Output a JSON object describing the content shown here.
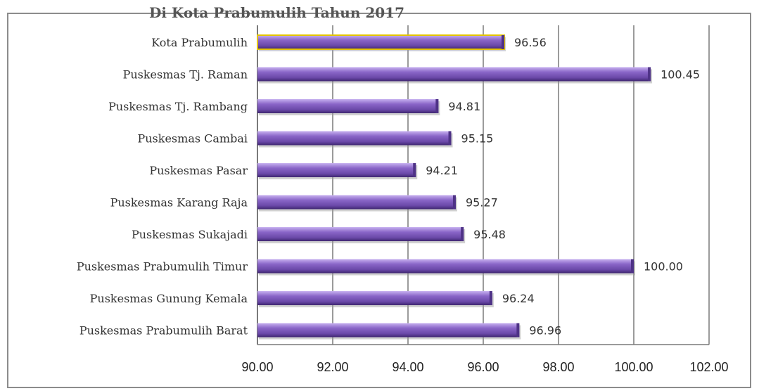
{
  "page": {
    "title_fragment": "Di Kota Prabumulih Tahun 2017"
  },
  "chart_data": {
    "type": "bar",
    "orientation": "horizontal",
    "categories": [
      "Kota Prabumulih",
      "Puskesmas Tj. Raman",
      "Puskesmas Tj. Rambang",
      "Puskesmas Cambai",
      "Puskesmas Pasar",
      "Puskesmas Karang Raja",
      "Puskesmas Sukajadi",
      "Puskesmas Prabumulih Timur",
      "Puskesmas Gunung Kemala",
      "Puskesmas Prabumulih Barat"
    ],
    "values": [
      96.56,
      100.45,
      94.81,
      95.15,
      94.21,
      95.27,
      95.48,
      100.0,
      96.24,
      96.96
    ],
    "value_labels": [
      "96.56",
      "100.45",
      "94.81",
      "95.15",
      "94.21",
      "95.27",
      "95.48",
      "100.00",
      "96.24",
      "96.96"
    ],
    "xlim": [
      90,
      102
    ],
    "xticks": [
      90,
      92,
      94,
      96,
      98,
      100,
      102
    ],
    "xtick_labels": [
      "90.00",
      "92.00",
      "94.00",
      "96.00",
      "98.00",
      "100.00",
      "102.00"
    ],
    "grid": "vertical",
    "highlight_index": 0,
    "colors": {
      "bar_fill": "#7e5bb8",
      "bar_light": "#b79be6",
      "bar_dark": "#4e3286",
      "highlight_outline": "#e3c400",
      "grid": "#7a7a7a"
    }
  }
}
